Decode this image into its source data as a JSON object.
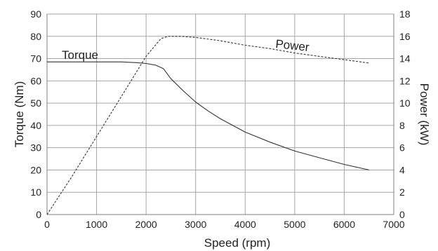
{
  "chart_data": {
    "type": "line",
    "xlabel": "Speed (rpm)",
    "ylabel": "Torque (Nm)",
    "y2label": "Power (kW)",
    "xlim": [
      0,
      7000
    ],
    "ylim": [
      0,
      90
    ],
    "y2lim": [
      0,
      18
    ],
    "xticks": [
      0,
      1000,
      2000,
      3000,
      4000,
      5000,
      6000,
      7000
    ],
    "yticks": [
      0,
      10,
      20,
      30,
      40,
      50,
      60,
      70,
      80,
      90
    ],
    "y2ticks": [
      0,
      2,
      4,
      6,
      8,
      10,
      12,
      14,
      16,
      18
    ],
    "grid": true,
    "series": [
      {
        "name": "Torque",
        "axis": "left",
        "style": "solid",
        "color": "#333333",
        "x": [
          0,
          1000,
          1500,
          1800,
          2000,
          2200,
          2350,
          2500,
          2750,
          3000,
          3250,
          3500,
          4000,
          4500,
          5000,
          5500,
          6000,
          6500
        ],
        "y": [
          68.5,
          68.5,
          68.5,
          68.2,
          67.8,
          67.0,
          65.5,
          61.0,
          55.5,
          50.5,
          46.5,
          43.0,
          37.0,
          32.5,
          28.5,
          25.5,
          22.5,
          20.0
        ]
      },
      {
        "name": "Power",
        "axis": "right",
        "style": "dashed",
        "color": "#333333",
        "x": [
          0,
          500,
          1000,
          1500,
          2000,
          2300,
          2450,
          2700,
          3000,
          3500,
          4000,
          4500,
          5000,
          5500,
          6000,
          6500
        ],
        "y": [
          0,
          3.4,
          7.0,
          10.6,
          14.2,
          15.8,
          16.0,
          16.0,
          15.9,
          15.6,
          15.2,
          14.9,
          14.5,
          14.2,
          13.9,
          13.6
        ]
      }
    ]
  }
}
